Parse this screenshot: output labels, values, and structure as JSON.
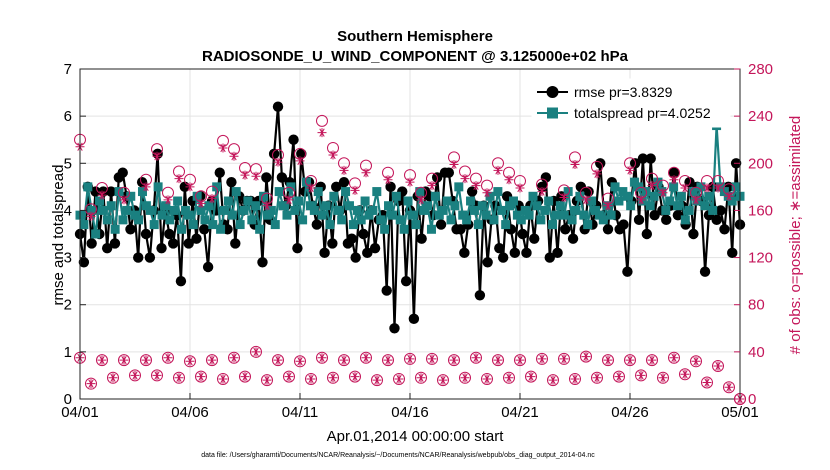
{
  "chart_data": {
    "type": "line",
    "title": "Southern Hemisphere",
    "subtitle": "RADIOSONDE_U_WIND_COMPONENT @ 3.125000e+02 hPa",
    "xlabel": "Apr.01,2014 00:00:00 start",
    "ylabel": "rmse and totalspread",
    "ylabel_right": "# of obs: o=possible; ∗=assimilated",
    "footnote": "data file: /Users/gharamti/Documents/NCAR/Reanalysis/~/Documents/NCAR/Reanalysis/webpub/obs_diag_output_2014-04.nc",
    "xlim": [
      0,
      30
    ],
    "ylim": [
      0,
      7
    ],
    "ylim_right": [
      0,
      280
    ],
    "x_ticks": [
      0,
      5,
      10,
      15,
      20,
      25,
      30
    ],
    "x_tick_labels": [
      "04/01",
      "04/06",
      "04/11",
      "04/16",
      "04/21",
      "04/26",
      "05/01"
    ],
    "y_ticks": [
      0,
      1,
      2,
      3,
      4,
      5,
      6,
      7
    ],
    "y_tick_labels": [
      "0",
      "1",
      "2",
      "3",
      "4",
      "5",
      "6",
      "7"
    ],
    "y_right_ticks": [
      0,
      40,
      80,
      120,
      160,
      200,
      240,
      280
    ],
    "y_right_tick_labels": [
      "0",
      "40",
      "80",
      "120",
      "160",
      "200",
      "240",
      "280"
    ],
    "grid": true,
    "legend_position": "top-right",
    "series": [
      {
        "name": "rmse pr=3.8329",
        "axis": "left",
        "color": "#000000",
        "marker": "circle",
        "values": [
          3.5,
          2.9,
          4.5,
          3.3,
          4.4,
          3.5,
          4.4,
          3.2,
          4.4,
          3.3,
          4.7,
          4.8,
          4.3,
          3.6,
          4.0,
          3.0,
          4.6,
          3.5,
          3.0,
          4.0,
          5.2,
          3.2,
          4.0,
          3.5,
          3.3,
          3.9,
          2.5,
          4.5,
          3.3,
          4.2,
          3.4,
          4.3,
          3.6,
          2.8,
          4.2,
          4.0,
          4.8,
          3.7,
          3.6,
          4.6,
          3.3,
          4.3,
          4.0,
          4.2,
          4.2,
          3.7,
          4.2,
          2.9,
          4.7,
          3.8,
          5.2,
          6.2,
          4.7,
          4.1,
          4.6,
          5.5,
          3.2,
          5.2,
          4.4,
          4.6,
          4.1,
          3.7,
          4.5,
          3.1,
          4.1,
          3.3,
          4.5,
          4.0,
          4.6,
          3.3,
          3.4,
          3.0,
          4.0,
          3.5,
          3.1,
          4.0,
          3.2,
          3.8,
          3.9,
          2.3,
          4.5,
          1.5,
          4.2,
          4.4,
          2.5,
          4.0,
          1.7,
          4.3,
          3.4,
          4.4,
          4.3,
          3.9,
          4.7,
          3.7,
          4.8,
          4.8,
          4.2,
          3.6,
          3.6,
          3.1,
          3.7,
          4.4,
          4.1,
          2.2,
          4.1,
          2.9,
          3.8,
          4.1,
          3.2,
          3.0,
          4.3,
          3.6,
          3.1,
          4.1,
          3.5,
          3.1,
          4.1,
          3.4,
          4.2,
          4.5,
          4.7,
          3.0,
          4.2,
          3.1,
          4.3,
          3.6,
          3.9,
          3.4,
          4.2,
          4.5,
          3.6,
          4.4,
          3.7,
          4.1,
          5.0,
          3.9,
          3.6,
          4.6,
          3.9,
          3.6,
          3.7,
          2.7,
          4.2,
          5.0,
          3.8,
          5.1,
          3.5,
          5.1,
          3.9,
          4.5,
          4.0,
          3.8,
          4.1,
          4.8,
          3.9,
          4.1,
          3.7,
          4.6,
          3.5,
          4.5,
          4.2,
          2.7,
          3.9,
          4.5,
          3.8,
          4.0,
          3.6,
          4.5,
          3.1,
          5.0,
          3.7
        ]
      },
      {
        "name": "totalspread pr=4.0252",
        "axis": "left",
        "color": "#1a8080",
        "marker": "square",
        "values": [
          3.9,
          3.7,
          4.5,
          4.0,
          3.5,
          4.2,
          4.0,
          3.8,
          4.1,
          3.6,
          4.4,
          3.8,
          4.0,
          4.3,
          3.9,
          3.8,
          4.4,
          4.1,
          4.0,
          3.7,
          4.5,
          3.9,
          4.1,
          3.8,
          4.0,
          4.2,
          3.6,
          4.0,
          3.9,
          3.7,
          4.3,
          4.0,
          3.8,
          4.1,
          3.7,
          4.5,
          3.6,
          4.0,
          4.2,
          3.9,
          4.4,
          3.7,
          4.0,
          4.2,
          3.8,
          4.1,
          3.6,
          4.3,
          3.9,
          4.0,
          3.7,
          4.4,
          4.1,
          3.9,
          4.5,
          4.0,
          4.2,
          3.8,
          4.6,
          4.1,
          4.0,
          4.4,
          3.9,
          4.1,
          3.7,
          4.3,
          4.0,
          3.8,
          4.4,
          4.1,
          3.7,
          4.0,
          3.8,
          4.2,
          3.9,
          4.0,
          4.4,
          3.8,
          3.6,
          4.1,
          3.9,
          4.3,
          3.8,
          3.6,
          4.2,
          3.9,
          3.7,
          4.4,
          4.0,
          4.1,
          3.6,
          4.3,
          3.9,
          4.0,
          4.2,
          3.8,
          4.1,
          4.5,
          3.9,
          3.8,
          4.2,
          4.0,
          3.7,
          4.1,
          3.9,
          4.3,
          3.8,
          4.4,
          4.0,
          3.7,
          4.1,
          4.2,
          3.9,
          3.8,
          4.0,
          3.9,
          4.3,
          4.1,
          3.8,
          4.0,
          4.2,
          3.7,
          3.9,
          4.1,
          3.9,
          4.4,
          3.8,
          4.0,
          4.3,
          3.9,
          3.7,
          4.2,
          4.0,
          3.9,
          3.8,
          4.1,
          3.9,
          4.5,
          4.2,
          4.4,
          4.3,
          4.1,
          4.6,
          4.5,
          4.2,
          4.4,
          4.1,
          4.3,
          4.6,
          4.4,
          4.0,
          4.2,
          4.5,
          4.1,
          4.3,
          3.8,
          4.0,
          4.4,
          4.2,
          4.5,
          4.1,
          4.3,
          4.0,
          5.8,
          4.5,
          4.4,
          4.3,
          4.2,
          4.5,
          4.3
        ]
      },
      {
        "name": "obs possible",
        "axis": "right",
        "color": "#c4165a",
        "marker": "open-circle",
        "x": [
          0,
          0.5,
          1,
          1.5,
          2,
          2.5,
          3,
          3.5,
          4,
          4.5,
          5,
          5.5,
          6,
          6.5,
          7,
          7.5,
          8,
          8.5,
          9,
          9.5,
          10,
          10.5,
          11,
          11.5,
          12,
          12.5,
          13,
          13.5,
          14,
          14.5,
          15,
          15.5,
          16,
          16.5,
          17,
          17.5,
          18,
          18.5,
          19,
          19.5,
          20,
          20.5,
          21,
          21.5,
          22,
          22.5,
          23,
          23.5,
          24,
          24.5,
          25,
          25.5,
          26,
          26.5,
          27,
          27.5,
          28,
          28.5,
          29,
          29.5,
          30
        ],
        "values": [
          35,
          13,
          33,
          18,
          33,
          20,
          33,
          20,
          35,
          18,
          32,
          19,
          33,
          17,
          35,
          19,
          40,
          16,
          33,
          19,
          32,
          17,
          35,
          18,
          33,
          19,
          35,
          16,
          33,
          17,
          34,
          18,
          34,
          16,
          33,
          18,
          35,
          17,
          33,
          18,
          33,
          19,
          34,
          16,
          34,
          17,
          36,
          18,
          33,
          19,
          33,
          20,
          33,
          18,
          35,
          21,
          32,
          14,
          28,
          10,
          0
        ]
      },
      {
        "name": "obs assimilated",
        "axis": "right",
        "color": "#c4165a",
        "marker": "asterisk",
        "x": [
          0,
          0.5,
          1,
          1.5,
          2,
          2.5,
          3,
          3.5,
          4,
          4.5,
          5,
          5.5,
          6,
          6.5,
          7,
          7.5,
          8,
          8.5,
          9,
          9.5,
          10,
          10.5,
          11,
          11.5,
          12,
          12.5,
          13,
          13.5,
          14,
          14.5,
          15,
          15.5,
          16,
          16.5,
          17,
          17.5,
          18,
          18.5,
          19,
          19.5,
          20,
          20.5,
          21,
          21.5,
          22,
          22.5,
          23,
          23.5,
          24,
          24.5,
          25,
          25.5,
          26,
          26.5,
          27,
          27.5,
          28,
          28.5,
          29,
          29.5,
          30
        ],
        "values": [
          35,
          13,
          33,
          18,
          33,
          20,
          33,
          20,
          35,
          18,
          32,
          19,
          33,
          17,
          35,
          19,
          40,
          16,
          33,
          19,
          32,
          17,
          35,
          18,
          33,
          19,
          35,
          16,
          33,
          17,
          34,
          18,
          34,
          16,
          33,
          18,
          35,
          17,
          33,
          18,
          33,
          19,
          34,
          16,
          34,
          17,
          36,
          18,
          33,
          19,
          33,
          20,
          33,
          18,
          35,
          21,
          32,
          14,
          28,
          10,
          0
        ]
      },
      {
        "name": "obs possible (upper)",
        "axis": "right",
        "color": "#c4165a",
        "marker": "open-circle",
        "x": [
          0,
          0.5,
          1,
          2,
          3,
          3.5,
          4,
          4.5,
          5,
          5.5,
          6,
          6.5,
          7,
          7.5,
          8,
          8.5,
          9,
          9.5,
          10,
          10.5,
          11,
          11.5,
          12,
          12.5,
          13,
          14,
          15,
          15.5,
          16,
          17,
          17.5,
          18,
          18.5,
          19,
          19.5,
          20,
          21,
          22,
          22.5,
          23,
          23.5,
          24,
          25,
          25.5,
          26,
          26.5,
          27,
          27.5,
          28,
          28.5,
          29,
          29.5,
          30
        ],
        "values": [
          220,
          161,
          179,
          175,
          186,
          212,
          175,
          193,
          186,
          172,
          176,
          219,
          212,
          196,
          195,
          170,
          207,
          175,
          208,
          185,
          236,
          213,
          200,
          183,
          198,
          192,
          190,
          175,
          187,
          205,
          193,
          187,
          181,
          200,
          192,
          185,
          182,
          177,
          205,
          175,
          197,
          170,
          200,
          175,
          187,
          181,
          192,
          185,
          175,
          185,
          185,
          178,
          0
        ]
      },
      {
        "name": "obs assimilated (upper)",
        "axis": "right",
        "color": "#c4165a",
        "marker": "asterisk",
        "x": [
          0,
          0.5,
          1,
          2,
          3,
          3.5,
          4,
          4.5,
          5,
          5.5,
          6,
          6.5,
          7,
          7.5,
          8,
          8.5,
          9,
          9.5,
          10,
          10.5,
          11,
          11.5,
          12,
          12.5,
          13,
          14,
          15,
          15.5,
          16,
          17,
          17.5,
          18,
          18.5,
          19,
          19.5,
          20,
          21,
          22,
          22.5,
          23,
          23.5,
          24,
          25,
          25.5,
          26,
          26.5,
          27,
          27.5,
          28,
          28.5,
          29,
          29.5,
          30
        ],
        "values": [
          214,
          155,
          173,
          169,
          180,
          206,
          169,
          187,
          180,
          166,
          170,
          213,
          206,
          190,
          189,
          164,
          201,
          169,
          202,
          179,
          226,
          207,
          194,
          177,
          192,
          186,
          184,
          169,
          181,
          199,
          187,
          181,
          175,
          194,
          186,
          179,
          176,
          171,
          199,
          169,
          191,
          164,
          194,
          169,
          181,
          175,
          186,
          179,
          169,
          179,
          179,
          172,
          0
        ]
      }
    ]
  }
}
